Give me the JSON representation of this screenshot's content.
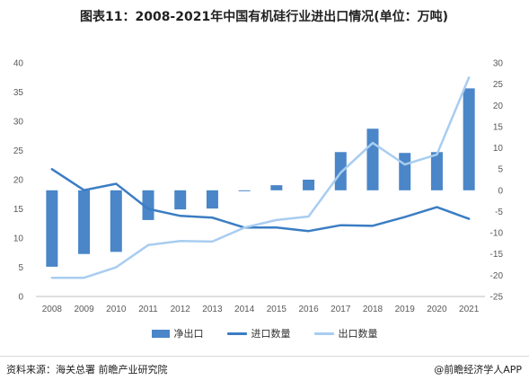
{
  "chart_data": {
    "type": "bar+line",
    "title": "图表11：2008-2021年中国有机硅行业进出口情况(单位：万吨)",
    "categories": [
      "2008",
      "2009",
      "2010",
      "2011",
      "2012",
      "2013",
      "2014",
      "2015",
      "2016",
      "2017",
      "2018",
      "2019",
      "2020",
      "2021"
    ],
    "left_axis": {
      "ticks": [
        0,
        5,
        10,
        15,
        20,
        25,
        30,
        35,
        40
      ],
      "range": [
        0,
        40
      ]
    },
    "right_axis": {
      "ticks": [
        -25,
        -20,
        -15,
        -10,
        -5,
        0,
        5,
        10,
        15,
        20,
        25,
        30
      ],
      "range": [
        -25,
        30
      ]
    },
    "series": [
      {
        "name": "净出口",
        "type": "bar",
        "axis": "right",
        "color": "#4a86c8",
        "values": [
          -18.0,
          -15.0,
          -14.5,
          -7.0,
          -4.5,
          -4.3,
          -0.2,
          1.2,
          2.5,
          9.0,
          14.5,
          8.8,
          9.0,
          24.0
        ]
      },
      {
        "name": "进口数量",
        "type": "line",
        "axis": "left",
        "color": "#3b7dc4",
        "values": [
          21.8,
          18.2,
          19.3,
          15.0,
          13.8,
          13.5,
          11.8,
          11.8,
          11.2,
          12.2,
          12.1,
          13.6,
          15.3,
          13.3
        ]
      },
      {
        "name": "出口数量",
        "type": "line",
        "axis": "left",
        "color": "#a8cdf0",
        "values": [
          3.2,
          3.2,
          5.0,
          8.8,
          9.5,
          9.4,
          11.8,
          13.1,
          13.7,
          21.2,
          26.3,
          22.6,
          24.3,
          37.5
        ]
      }
    ],
    "legend_position": "bottom",
    "grid": false
  },
  "footer": {
    "source": "资料来源：海关总署 前瞻产业研究院",
    "brand": "@前瞻经济学人APP"
  }
}
